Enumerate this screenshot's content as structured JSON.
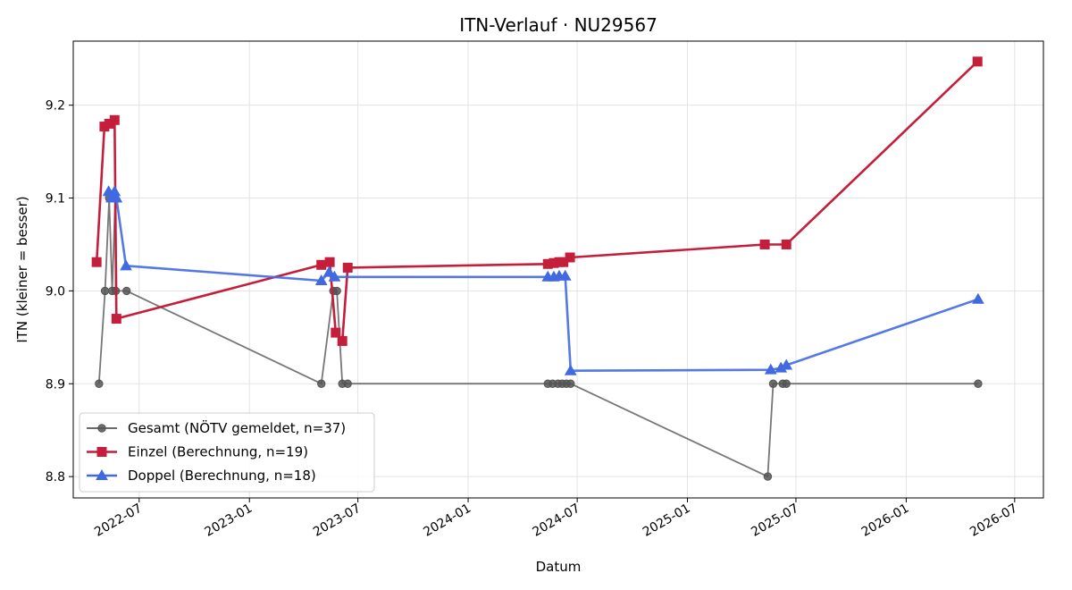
{
  "chart_data": {
    "type": "line",
    "title": "ITN-Verlauf · NU29567",
    "xlabel": "Datum",
    "ylabel": "ITN  (kleiner = besser)",
    "x_axis": {
      "scale": "date",
      "range": [
        "2022-03-13",
        "2026-08-18"
      ],
      "ticks": [
        "2022-07-01",
        "2023-01-01",
        "2023-07-01",
        "2024-01-01",
        "2024-07-01",
        "2025-01-01",
        "2025-07-01",
        "2026-01-01",
        "2026-07-01"
      ],
      "tick_labels": [
        "2022-07",
        "2023-01",
        "2023-07",
        "2024-01",
        "2024-07",
        "2025-01",
        "2025-07",
        "2026-01",
        "2026-07"
      ]
    },
    "y_axis": {
      "ylim": [
        8.777,
        9.269
      ],
      "ticks": [
        8.8,
        8.9,
        9.0,
        9.1,
        9.2
      ],
      "tick_labels": [
        "8.8",
        "8.9",
        "9.0",
        "9.1",
        "9.2"
      ]
    },
    "grid": true,
    "legend_position": "bottom-left",
    "series": [
      {
        "name": "Gesamt (NÖTV gemeldet, n=37)",
        "color": "#555555",
        "marker": "circle",
        "points": [
          {
            "x": "2022-04-25",
            "y": 8.9
          },
          {
            "x": "2022-05-05",
            "y": 9.0
          },
          {
            "x": "2022-05-12",
            "y": 9.1
          },
          {
            "x": "2022-05-17",
            "y": 9.0
          },
          {
            "x": "2022-05-22",
            "y": 9.1
          },
          {
            "x": "2022-05-23",
            "y": 9.0
          },
          {
            "x": "2022-06-10",
            "y": 9.0
          },
          {
            "x": "2023-05-01",
            "y": 8.9
          },
          {
            "x": "2023-05-21",
            "y": 9.0
          },
          {
            "x": "2023-05-27",
            "y": 9.0
          },
          {
            "x": "2023-06-05",
            "y": 8.9
          },
          {
            "x": "2023-06-14",
            "y": 8.9
          },
          {
            "x": "2024-05-13",
            "y": 8.9
          },
          {
            "x": "2024-05-21",
            "y": 8.9
          },
          {
            "x": "2024-05-30",
            "y": 8.9
          },
          {
            "x": "2024-06-06",
            "y": 8.9
          },
          {
            "x": "2024-06-13",
            "y": 8.9
          },
          {
            "x": "2024-06-20",
            "y": 8.9
          },
          {
            "x": "2025-05-15",
            "y": 8.8
          },
          {
            "x": "2025-05-24",
            "y": 8.9
          },
          {
            "x": "2025-06-09",
            "y": 8.9
          },
          {
            "x": "2025-06-15",
            "y": 8.9
          },
          {
            "x": "2026-05-01",
            "y": 8.9
          }
        ]
      },
      {
        "name": "Einzel (Berechnung, n=19)",
        "color": "#c41e3a",
        "marker": "square",
        "points": [
          {
            "x": "2022-04-21",
            "y": 9.031
          },
          {
            "x": "2022-05-04",
            "y": 9.177
          },
          {
            "x": "2022-05-12",
            "y": 9.18
          },
          {
            "x": "2022-05-21",
            "y": 9.184
          },
          {
            "x": "2022-05-24",
            "y": 8.97
          },
          {
            "x": "2023-05-01",
            "y": 9.028
          },
          {
            "x": "2023-05-15",
            "y": 9.031
          },
          {
            "x": "2023-05-25",
            "y": 8.955
          },
          {
            "x": "2023-06-05",
            "y": 8.946
          },
          {
            "x": "2023-06-14",
            "y": 9.025
          },
          {
            "x": "2024-05-13",
            "y": 9.029
          },
          {
            "x": "2024-05-23",
            "y": 9.03
          },
          {
            "x": "2024-06-01",
            "y": 9.031
          },
          {
            "x": "2024-06-08",
            "y": 9.031
          },
          {
            "x": "2024-06-19",
            "y": 9.036
          },
          {
            "x": "2025-05-10",
            "y": 9.05
          },
          {
            "x": "2025-06-15",
            "y": 9.05
          },
          {
            "x": "2026-04-30",
            "y": 9.247
          }
        ]
      },
      {
        "name": "Doppel (Berechnung, n=18)",
        "color": "#4169e1",
        "marker": "triangle",
        "points": [
          {
            "x": "2022-05-11",
            "y": 9.107
          },
          {
            "x": "2022-05-16",
            "y": 9.1
          },
          {
            "x": "2022-05-21",
            "y": 9.107
          },
          {
            "x": "2022-05-24",
            "y": 9.1
          },
          {
            "x": "2022-06-09",
            "y": 9.027
          },
          {
            "x": "2023-05-01",
            "y": 9.011
          },
          {
            "x": "2023-05-14",
            "y": 9.02
          },
          {
            "x": "2023-05-23",
            "y": 9.015
          },
          {
            "x": "2024-05-13",
            "y": 9.015
          },
          {
            "x": "2024-05-23",
            "y": 9.015
          },
          {
            "x": "2024-06-01",
            "y": 9.016
          },
          {
            "x": "2024-06-11",
            "y": 9.016
          },
          {
            "x": "2024-06-20",
            "y": 8.914
          },
          {
            "x": "2025-05-20",
            "y": 8.915
          },
          {
            "x": "2025-06-06",
            "y": 8.917
          },
          {
            "x": "2025-06-15",
            "y": 8.92
          },
          {
            "x": "2026-05-01",
            "y": 8.991
          }
        ]
      }
    ]
  }
}
